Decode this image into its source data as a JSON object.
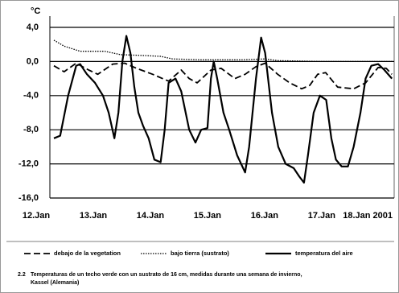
{
  "chart_data": {
    "type": "line",
    "y_unit": "°C",
    "xlim": [
      12.24,
      18.27
    ],
    "xticks": [
      {
        "value": 12,
        "label": "12.Jan"
      },
      {
        "value": 13,
        "label": "13.Jan"
      },
      {
        "value": 14,
        "label": "14.Jan"
      },
      {
        "value": 15,
        "label": "15.Jan"
      },
      {
        "value": 16,
        "label": "16.Jan"
      },
      {
        "value": 17,
        "label": "17.Jan"
      },
      {
        "value": 18,
        "label": "18.Jan 2001"
      }
    ],
    "ylim": [
      -16,
      4
    ],
    "yticks": [
      {
        "value": 4,
        "label": "4,0"
      },
      {
        "value": 0,
        "label": "0,0"
      },
      {
        "value": -4,
        "label": "-4,0"
      },
      {
        "value": -8,
        "label": "-8,0"
      },
      {
        "value": -12,
        "label": "-12,0"
      },
      {
        "value": -16,
        "label": "-16,0"
      }
    ],
    "grid": true,
    "series": [
      {
        "name": "debajo de la vegetation",
        "color": "#000000",
        "style": "dashed",
        "x": [
          12.31,
          12.49,
          12.7,
          12.92,
          13.08,
          13.34,
          13.55,
          13.76,
          14.04,
          14.32,
          14.54,
          14.68,
          14.82,
          15.06,
          15.24,
          15.48,
          15.66,
          15.85,
          16.01,
          16.23,
          16.44,
          16.65,
          16.79,
          16.93,
          17.07,
          17.28,
          17.56,
          17.77,
          17.99,
          18.13,
          18.23
        ],
        "values": [
          -0.5,
          -1.2,
          -0.2,
          -1,
          -1.5,
          -0.3,
          -0.2,
          -0.8,
          -1.5,
          -2.3,
          -1,
          -2,
          -2.5,
          -1,
          -0.8,
          -2,
          -1.5,
          -0.6,
          -0.2,
          -1.5,
          -2.5,
          -3.2,
          -2.8,
          -1.5,
          -1.3,
          -3,
          -3.2,
          -2.5,
          -0.7,
          -0.8,
          -1.5
        ]
      },
      {
        "name": "bajo tierra (sustrato)",
        "color": "#000000",
        "style": "dotted",
        "x": [
          12.31,
          12.49,
          12.77,
          13.2,
          13.48,
          13.9,
          14.18,
          14.39,
          14.89,
          15.59,
          16.01,
          16.23,
          16.99,
          17.7,
          18.23
        ],
        "values": [
          2.5,
          1.8,
          1.2,
          1.2,
          0.8,
          0.7,
          0.6,
          0.3,
          0.2,
          0.2,
          0.3,
          0.1,
          0,
          0,
          0
        ]
      },
      {
        "name": "temperatura del aire",
        "color": "#000000",
        "style": "solid",
        "x": [
          12.31,
          12.42,
          12.56,
          12.7,
          12.77,
          12.89,
          13.03,
          13.17,
          13.27,
          13.37,
          13.44,
          13.51,
          13.58,
          13.65,
          13.72,
          13.79,
          13.87,
          13.97,
          14.07,
          14.18,
          14.25,
          14.32,
          14.44,
          14.54,
          14.68,
          14.79,
          14.89,
          15.0,
          15.06,
          15.11,
          15.17,
          15.28,
          15.38,
          15.52,
          15.66,
          15.73,
          15.85,
          15.94,
          16.01,
          16.13,
          16.24,
          16.37,
          16.51,
          16.61,
          16.69,
          16.76,
          16.86,
          16.97,
          17.08,
          17.17,
          17.25,
          17.35,
          17.46,
          17.56,
          17.68,
          17.77,
          17.87,
          17.99,
          18.1,
          18.23
        ],
        "values": [
          -9,
          -8.7,
          -4,
          -0.5,
          -0.3,
          -1.5,
          -2.5,
          -4,
          -6,
          -9,
          -6,
          0,
          3,
          1,
          -3,
          -6,
          -7.5,
          -9,
          -11.5,
          -11.8,
          -8,
          -2.5,
          -2,
          -3.5,
          -8,
          -9.5,
          -8,
          -7.8,
          -2,
          0,
          -2,
          -6,
          -8,
          -11,
          -13,
          -10,
          -2,
          2.8,
          1,
          -6,
          -10,
          -12,
          -12.5,
          -13.5,
          -14.2,
          -11,
          -6,
          -4,
          -4.5,
          -9,
          -11.5,
          -12.3,
          -12.3,
          -10,
          -6,
          -2,
          -0.5,
          -0.3,
          -1,
          -2
        ]
      }
    ],
    "caption_number": "2.2",
    "caption": [
      "Temperaturas de un techo verde con un sustrato de 16 cm, medidas durante una semana de invierno,",
      "Kassel (Alemania)"
    ]
  }
}
